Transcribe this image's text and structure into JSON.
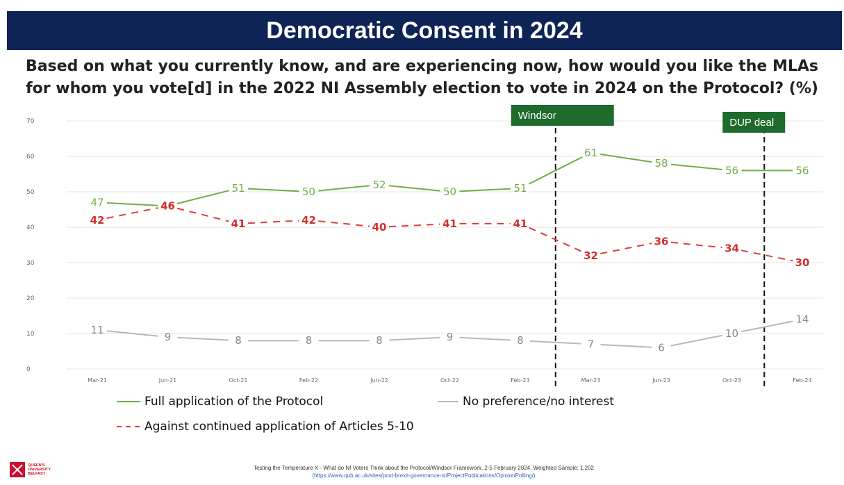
{
  "header": {
    "title": "Democratic Consent in 2024",
    "question": "Based on what you currently know, and are experiencing now, how would you like the MLAs for whom you vote[d] in the 2022 NI Assembly election to vote in 2024 on the Protocol? (%)"
  },
  "chart_data": {
    "type": "line",
    "categories": [
      "Mar-21",
      "Jun-21",
      "Oct-21",
      "Feb-22",
      "Jun-22",
      "Oct-22",
      "Feb-23",
      "Mar-23",
      "Jun-23",
      "Oct-23",
      "Feb-24"
    ],
    "series": [
      {
        "name": "Full application of the Protocol",
        "color": "#70ad47",
        "dash": "solid",
        "values": [
          47,
          46,
          51,
          50,
          52,
          50,
          51,
          61,
          58,
          56,
          56
        ]
      },
      {
        "name": "Against continued application of Articles 5-10",
        "color": "#e03c3c",
        "dash": "dashed",
        "values": [
          42,
          46,
          41,
          42,
          40,
          41,
          41,
          32,
          36,
          34,
          30
        ]
      },
      {
        "name": "No preference/no interest",
        "color": "#b8b8b8",
        "dash": "solid",
        "values": [
          11,
          9,
          8,
          8,
          8,
          9,
          8,
          7,
          6,
          10,
          14
        ]
      }
    ],
    "yticks": [
      0,
      10,
      20,
      30,
      40,
      50,
      60,
      70
    ],
    "ylim": [
      0,
      70
    ],
    "grid": true,
    "annotations": [
      {
        "label": "Windsor",
        "between": [
          "Feb-23",
          "Mar-23"
        ]
      },
      {
        "label": "DUP deal",
        "between": [
          "Oct-23",
          "Feb-24"
        ]
      }
    ]
  },
  "legend": {
    "full": "Full application of the Protocol",
    "none": "No preference/no interest",
    "against": "Against continued application of Articles 5-10"
  },
  "footer": {
    "line1": "Testing the Temperature X - What do NI Voters Think about the Protocol/Windsor Framework, 2-5 February 2024. Weighted Sample: 1,202",
    "line2": "(https://www.qub.ac.uk/sites/post-brexit-governance-ni/ProjectPublications/OpinionPolling/)",
    "logo_text": "QUEEN'S UNIVERSITY BELFAST"
  }
}
